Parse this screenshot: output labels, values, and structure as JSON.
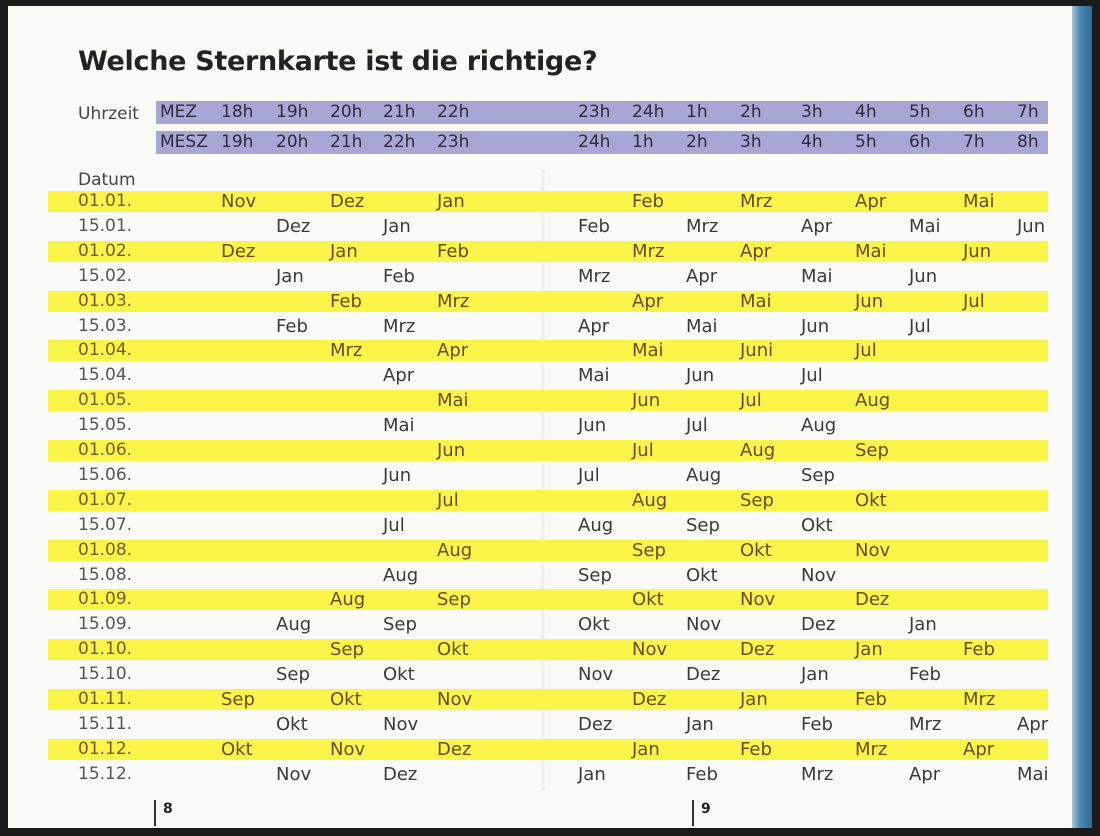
{
  "title": "Welche Sternkarte ist die richtige?",
  "labels": {
    "time": "Uhrzeit",
    "date": "Datum"
  },
  "time_rows": [
    {
      "zone": "MEZ",
      "hours": [
        "18h",
        "19h",
        "20h",
        "21h",
        "22h",
        "23h",
        "24h",
        "1h",
        "2h",
        "3h",
        "4h",
        "5h",
        "6h",
        "7h"
      ]
    },
    {
      "zone": "MESZ",
      "hours": [
        "19h",
        "20h",
        "21h",
        "22h",
        "23h",
        "24h",
        "1h",
        "2h",
        "3h",
        "4h",
        "5h",
        "6h",
        "7h",
        "8h"
      ]
    }
  ],
  "dates": [
    {
      "date": "01.01.",
      "maps": [
        "",
        "Nov",
        "",
        "Dez",
        "",
        "Jan",
        "",
        "Feb",
        "",
        "Mrz",
        "",
        "Apr",
        "",
        "Mai",
        ""
      ]
    },
    {
      "date": "15.01.",
      "maps": [
        "",
        "",
        "Dez",
        "",
        "Jan",
        "",
        "Feb",
        "",
        "Mrz",
        "",
        "Apr",
        "",
        "Mai",
        "",
        "Jun"
      ]
    },
    {
      "date": "01.02.",
      "maps": [
        "",
        "Dez",
        "",
        "Jan",
        "",
        "Feb",
        "",
        "Mrz",
        "",
        "Apr",
        "",
        "Mai",
        "",
        "Jun",
        ""
      ]
    },
    {
      "date": "15.02.",
      "maps": [
        "",
        "",
        "Jan",
        "",
        "Feb",
        "",
        "Mrz",
        "",
        "Apr",
        "",
        "Mai",
        "",
        "Jun",
        "",
        ""
      ]
    },
    {
      "date": "01.03.",
      "maps": [
        "",
        "",
        "",
        "Feb",
        "",
        "Mrz",
        "",
        "Apr",
        "",
        "Mai",
        "",
        "Jun",
        "",
        "Jul",
        ""
      ]
    },
    {
      "date": "15.03.",
      "maps": [
        "",
        "",
        "Feb",
        "",
        "Mrz",
        "",
        "Apr",
        "",
        "Mai",
        "",
        "Jun",
        "",
        "Jul",
        "",
        ""
      ]
    },
    {
      "date": "01.04.",
      "maps": [
        "",
        "",
        "",
        "Mrz",
        "",
        "Apr",
        "",
        "Mai",
        "",
        "Juni",
        "",
        "Jul",
        "",
        "",
        ""
      ]
    },
    {
      "date": "15.04.",
      "maps": [
        "",
        "",
        "",
        "",
        "Apr",
        "",
        "Mai",
        "",
        "Jun",
        "",
        "Jul",
        "",
        "",
        "",
        ""
      ]
    },
    {
      "date": "01.05.",
      "maps": [
        "",
        "",
        "",
        "",
        "",
        "Mai",
        "",
        "Jun",
        "",
        "Jul",
        "",
        "Aug",
        "",
        "",
        ""
      ]
    },
    {
      "date": "15.05.",
      "maps": [
        "",
        "",
        "",
        "",
        "Mai",
        "",
        "Jun",
        "",
        "Jul",
        "",
        "Aug",
        "",
        "",
        "",
        ""
      ]
    },
    {
      "date": "01.06.",
      "maps": [
        "",
        "",
        "",
        "",
        "",
        "Jun",
        "",
        "Jul",
        "",
        "Aug",
        "",
        "Sep",
        "",
        "",
        ""
      ]
    },
    {
      "date": "15.06.",
      "maps": [
        "",
        "",
        "",
        "",
        "Jun",
        "",
        "Jul",
        "",
        "Aug",
        "",
        "Sep",
        "",
        "",
        "",
        ""
      ]
    },
    {
      "date": "01.07.",
      "maps": [
        "",
        "",
        "",
        "",
        "",
        "Jul",
        "",
        "Aug",
        "",
        "Sep",
        "",
        "Okt",
        "",
        "",
        ""
      ]
    },
    {
      "date": "15.07.",
      "maps": [
        "",
        "",
        "",
        "",
        "Jul",
        "",
        "Aug",
        "",
        "Sep",
        "",
        "Okt",
        "",
        "",
        "",
        ""
      ]
    },
    {
      "date": "01.08.",
      "maps": [
        "",
        "",
        "",
        "",
        "",
        "Aug",
        "",
        "Sep",
        "",
        "Okt",
        "",
        "Nov",
        "",
        "",
        ""
      ]
    },
    {
      "date": "15.08.",
      "maps": [
        "",
        "",
        "",
        "",
        "Aug",
        "",
        "Sep",
        "",
        "Okt",
        "",
        "Nov",
        "",
        "",
        "",
        ""
      ]
    },
    {
      "date": "01.09.",
      "maps": [
        "",
        "",
        "",
        "Aug",
        "",
        "Sep",
        "",
        "Okt",
        "",
        "Nov",
        "",
        "Dez",
        "",
        "",
        ""
      ]
    },
    {
      "date": "15.09.",
      "maps": [
        "",
        "",
        "Aug",
        "",
        "Sep",
        "",
        "Okt",
        "",
        "Nov",
        "",
        "Dez",
        "",
        "Jan",
        "",
        ""
      ]
    },
    {
      "date": "01.10.",
      "maps": [
        "",
        "",
        "",
        "Sep",
        "",
        "Okt",
        "",
        "Nov",
        "",
        "Dez",
        "",
        "Jan",
        "",
        "Feb",
        ""
      ]
    },
    {
      "date": "15.10.",
      "maps": [
        "",
        "",
        "Sep",
        "",
        "Okt",
        "",
        "Nov",
        "",
        "Dez",
        "",
        "Jan",
        "",
        "Feb",
        "",
        ""
      ]
    },
    {
      "date": "01.11.",
      "maps": [
        "",
        "Sep",
        "",
        "Okt",
        "",
        "Nov",
        "",
        "Dez",
        "",
        "Jan",
        "",
        "Feb",
        "",
        "Mrz",
        ""
      ]
    },
    {
      "date": "15.11.",
      "maps": [
        "",
        "",
        "Okt",
        "",
        "Nov",
        "",
        "Dez",
        "",
        "Jan",
        "",
        "Feb",
        "",
        "Mrz",
        "",
        "Apr"
      ]
    },
    {
      "date": "01.12.",
      "maps": [
        "",
        "Okt",
        "",
        "Nov",
        "",
        "Dez",
        "",
        "Jan",
        "",
        "Feb",
        "",
        "Mrz",
        "",
        "Apr",
        ""
      ]
    },
    {
      "date": "15.12.",
      "maps": [
        "",
        "",
        "Nov",
        "",
        "Dez",
        "",
        "Jan",
        "",
        "Feb",
        "",
        "Mrz",
        "",
        "Apr",
        "",
        "Mai"
      ]
    }
  ],
  "page_numbers": {
    "left": "8",
    "right": "9"
  }
}
